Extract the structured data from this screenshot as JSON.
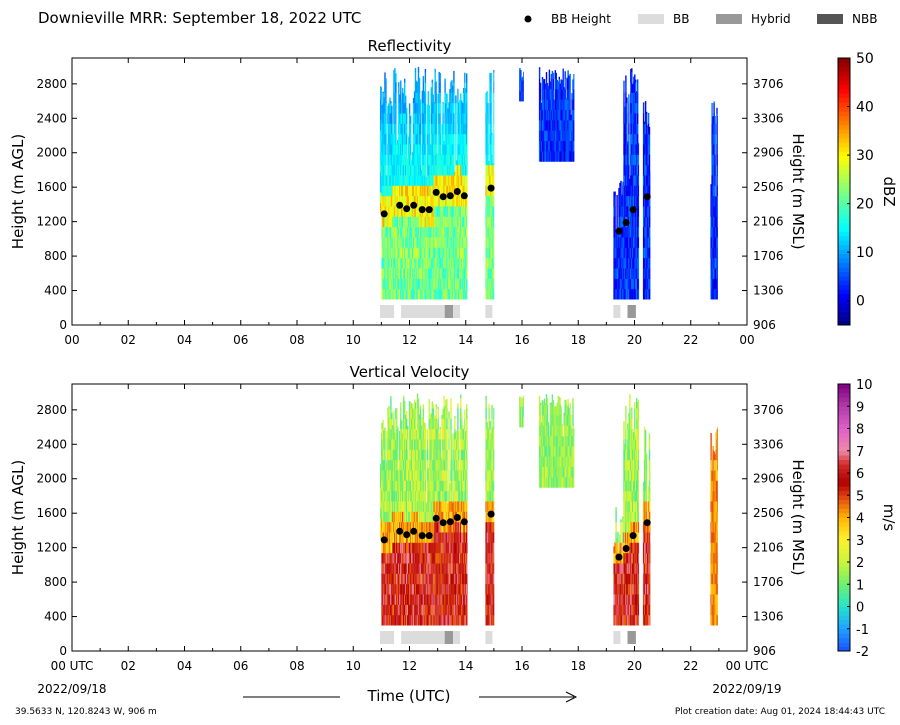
{
  "header": {
    "title": "Downieville MRR:  September 18, 2022 UTC",
    "legend": [
      {
        "label": "BB Height",
        "kind": "dot",
        "color": "#000000"
      },
      {
        "label": "BB",
        "kind": "bar",
        "color": "#dcdcdc"
      },
      {
        "label": "Hybrid",
        "kind": "bar",
        "color": "#999999"
      },
      {
        "label": "NBB",
        "kind": "bar",
        "color": "#555555"
      }
    ]
  },
  "footer": {
    "location": "39.5633 N, 120.8243 W, 906 m",
    "creation": "Plot creation date: Aug 01, 2024 18:44:43 UTC",
    "x_axis_title": "Time (UTC)",
    "start_suffix": "UTC",
    "start_date": "2022/09/18",
    "end_suffix": "UTC",
    "end_date": "2022/09/19"
  },
  "chart_data": [
    {
      "type": "heatmap",
      "title": "Reflectivity",
      "ylabel": "Height (m AGL)",
      "ylabel_right": "Height (m MSL)",
      "xlim": [
        0,
        24
      ],
      "ylim": [
        0,
        3100
      ],
      "x_ticks": [
        "00",
        "02",
        "04",
        "06",
        "08",
        "10",
        "12",
        "14",
        "16",
        "18",
        "20",
        "22",
        "00"
      ],
      "y_ticks": [
        0,
        400,
        800,
        1200,
        1600,
        2000,
        2400,
        2800
      ],
      "y_ticks_right": [
        906,
        1306,
        1706,
        2106,
        2506,
        2906,
        3306,
        3706
      ],
      "colorbar": {
        "label": "dBZ",
        "min": -5,
        "max": 50,
        "ticks": [
          0,
          10,
          20,
          30,
          40,
          50
        ],
        "scheme": "jet"
      },
      "bb_height": [
        {
          "t": 11.1,
          "h": 1290
        },
        {
          "t": 11.65,
          "h": 1390
        },
        {
          "t": 11.9,
          "h": 1350
        },
        {
          "t": 12.15,
          "h": 1390
        },
        {
          "t": 12.45,
          "h": 1340
        },
        {
          "t": 12.7,
          "h": 1340
        },
        {
          "t": 12.95,
          "h": 1540
        },
        {
          "t": 13.2,
          "h": 1490
        },
        {
          "t": 13.45,
          "h": 1500
        },
        {
          "t": 13.7,
          "h": 1550
        },
        {
          "t": 13.95,
          "h": 1500
        },
        {
          "t": 14.9,
          "h": 1590
        },
        {
          "t": 19.45,
          "h": 1090
        },
        {
          "t": 19.7,
          "h": 1190
        },
        {
          "t": 19.95,
          "h": 1340
        },
        {
          "t": 20.45,
          "h": 1490
        }
      ],
      "bb_class": [
        {
          "t0": 10.95,
          "t1": 11.45,
          "class": "BB"
        },
        {
          "t0": 11.7,
          "t1": 13.25,
          "class": "BB"
        },
        {
          "t0": 13.25,
          "t1": 13.55,
          "class": "Hybrid"
        },
        {
          "t0": 13.55,
          "t1": 13.8,
          "class": "BB"
        },
        {
          "t0": 14.7,
          "t1": 14.95,
          "class": "BB"
        },
        {
          "t0": 19.25,
          "t1": 19.5,
          "class": "BB"
        },
        {
          "t0": 19.75,
          "t1": 20.05,
          "class": "Hybrid"
        }
      ],
      "echo_periods": [
        {
          "t0": 10.95,
          "t1": 11.0,
          "h0": 1300,
          "h1": 2800
        },
        {
          "t0": 11.0,
          "t1": 14.05,
          "h0": 300,
          "h1": 3000
        },
        {
          "t0": 14.7,
          "t1": 15.0,
          "h0": 300,
          "h1": 3000
        },
        {
          "t0": 15.9,
          "t1": 16.05,
          "h0": 2600,
          "h1": 3000
        },
        {
          "t0": 16.6,
          "t1": 17.85,
          "h0": 1900,
          "h1": 3000
        },
        {
          "t0": 19.25,
          "t1": 19.6,
          "h0": 300,
          "h1": 1750
        },
        {
          "t0": 19.6,
          "t1": 20.15,
          "h0": 300,
          "h1": 3000
        },
        {
          "t0": 20.3,
          "t1": 20.55,
          "h0": 300,
          "h1": 2650
        },
        {
          "t0": 22.7,
          "t1": 22.95,
          "h0": 300,
          "h1": 2700
        }
      ]
    },
    {
      "type": "heatmap",
      "title": "Vertical Velocity",
      "ylabel": "Height (m AGL)",
      "ylabel_right": "Height (m MSL)",
      "xlim": [
        0,
        24
      ],
      "ylim": [
        0,
        3100
      ],
      "x_ticks": [
        "00",
        "02",
        "04",
        "06",
        "08",
        "10",
        "12",
        "14",
        "16",
        "18",
        "20",
        "22",
        "00"
      ],
      "y_ticks": [
        0,
        400,
        800,
        1200,
        1600,
        2000,
        2400,
        2800
      ],
      "y_ticks_right": [
        906,
        1306,
        1706,
        2106,
        2506,
        2906,
        3306,
        3706
      ],
      "colorbar": {
        "label": "m/s",
        "min": -2,
        "max": 10,
        "ticks": [
          -2,
          -1,
          0,
          1,
          2,
          3,
          4,
          5,
          6,
          7,
          8,
          9,
          10
        ],
        "scheme": "velocity"
      },
      "bb_height": [
        {
          "t": 11.1,
          "h": 1290
        },
        {
          "t": 11.65,
          "h": 1390
        },
        {
          "t": 11.9,
          "h": 1350
        },
        {
          "t": 12.15,
          "h": 1390
        },
        {
          "t": 12.45,
          "h": 1340
        },
        {
          "t": 12.7,
          "h": 1340
        },
        {
          "t": 12.95,
          "h": 1540
        },
        {
          "t": 13.2,
          "h": 1490
        },
        {
          "t": 13.45,
          "h": 1500
        },
        {
          "t": 13.7,
          "h": 1550
        },
        {
          "t": 13.95,
          "h": 1500
        },
        {
          "t": 14.9,
          "h": 1590
        },
        {
          "t": 19.45,
          "h": 1090
        },
        {
          "t": 19.7,
          "h": 1190
        },
        {
          "t": 19.95,
          "h": 1340
        },
        {
          "t": 20.45,
          "h": 1490
        }
      ],
      "bb_class": [
        {
          "t0": 10.95,
          "t1": 11.45,
          "class": "BB"
        },
        {
          "t0": 11.7,
          "t1": 13.25,
          "class": "BB"
        },
        {
          "t0": 13.25,
          "t1": 13.55,
          "class": "Hybrid"
        },
        {
          "t0": 13.55,
          "t1": 13.8,
          "class": "BB"
        },
        {
          "t0": 14.7,
          "t1": 14.95,
          "class": "BB"
        },
        {
          "t0": 19.25,
          "t1": 19.5,
          "class": "BB"
        },
        {
          "t0": 19.75,
          "t1": 20.05,
          "class": "Hybrid"
        }
      ],
      "echo_periods": [
        {
          "t0": 10.95,
          "t1": 11.0,
          "h0": 1300,
          "h1": 2800
        },
        {
          "t0": 11.0,
          "t1": 14.05,
          "h0": 300,
          "h1": 3000
        },
        {
          "t0": 14.7,
          "t1": 15.0,
          "h0": 300,
          "h1": 3000
        },
        {
          "t0": 15.9,
          "t1": 16.05,
          "h0": 2600,
          "h1": 3000
        },
        {
          "t0": 16.6,
          "t1": 17.85,
          "h0": 1900,
          "h1": 3000
        },
        {
          "t0": 19.25,
          "t1": 19.6,
          "h0": 300,
          "h1": 1750
        },
        {
          "t0": 19.6,
          "t1": 20.15,
          "h0": 300,
          "h1": 3000
        },
        {
          "t0": 20.3,
          "t1": 20.55,
          "h0": 300,
          "h1": 2650
        },
        {
          "t0": 22.7,
          "t1": 22.95,
          "h0": 300,
          "h1": 2700
        }
      ]
    }
  ]
}
